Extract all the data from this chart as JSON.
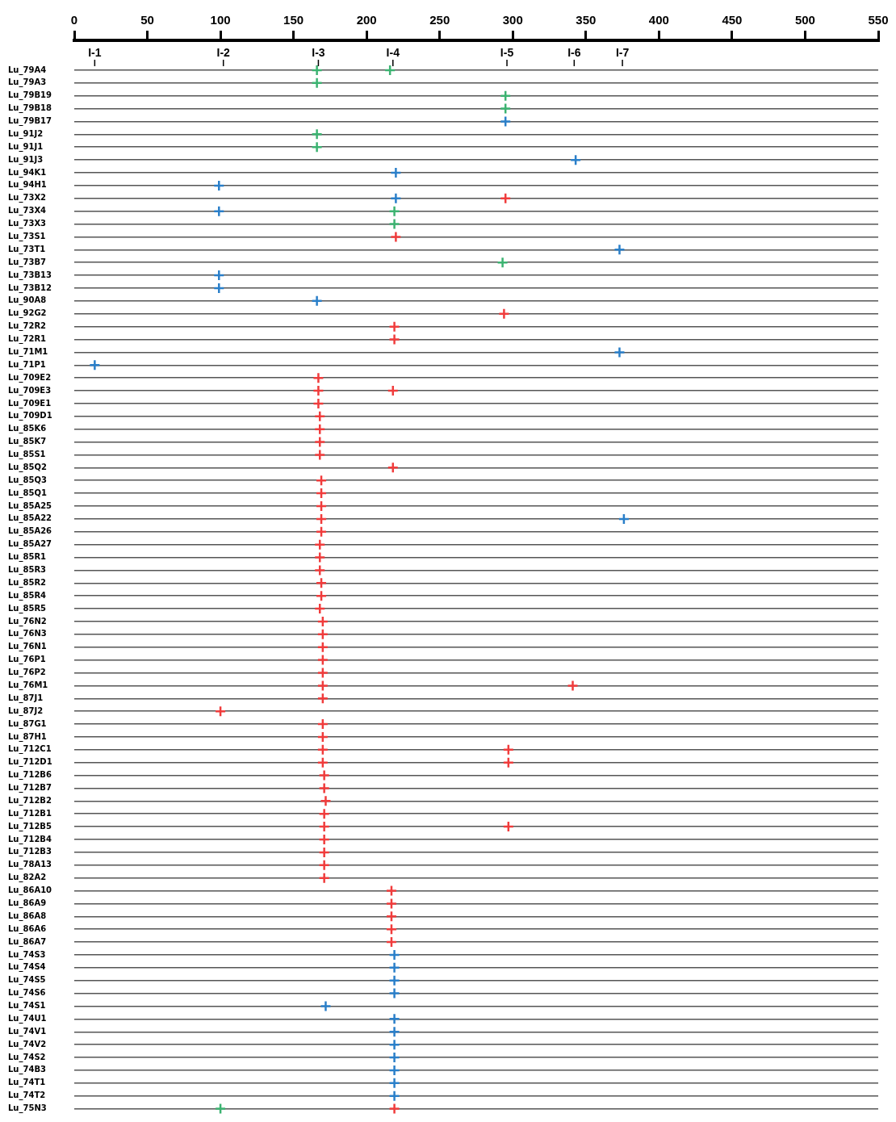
{
  "chart_data": {
    "type": "scatter",
    "orientation": "horizontal",
    "grid": "y",
    "xlim": [
      0,
      550
    ],
    "xticks": [
      0,
      50,
      100,
      150,
      200,
      250,
      300,
      350,
      400,
      450,
      500,
      550
    ],
    "ref_lines": [
      {
        "axis": "x",
        "value": 14,
        "label": "I-1"
      },
      {
        "axis": "x",
        "value": 102,
        "label": "I-2"
      },
      {
        "axis": "x",
        "value": 167,
        "label": "I-3"
      },
      {
        "axis": "x",
        "value": 218,
        "label": "I-4"
      },
      {
        "axis": "x",
        "value": 296,
        "label": "I-5"
      },
      {
        "axis": "x",
        "value": 342,
        "label": "I-6"
      },
      {
        "axis": "x",
        "value": 375,
        "label": "I-7"
      }
    ],
    "categories": [
      "Lu_79A4",
      "Lu_79A3",
      "Lu_79B19",
      "Lu_79B18",
      "Lu_79B17",
      "Lu_91J2",
      "Lu_91J1",
      "Lu_91J3",
      "Lu_94K1",
      "Lu_94H1",
      "Lu_73X2",
      "Lu_73X4",
      "Lu_73X3",
      "Lu_73S1",
      "Lu_73T1",
      "Lu_73B7",
      "Lu_73B13",
      "Lu_73B12",
      "Lu_90A8",
      "Lu_92G2",
      "Lu_72R2",
      "Lu_72R1",
      "Lu_71M1",
      "Lu_71P1",
      "Lu_709E2",
      "Lu_709E3",
      "Lu_709E1",
      "Lu_709D1",
      "Lu_85K6",
      "Lu_85K7",
      "Lu_85S1",
      "Lu_85Q2",
      "Lu_85Q3",
      "Lu_85Q1",
      "Lu_85A25",
      "Lu_85A22",
      "Lu_85A26",
      "Lu_85A27",
      "Lu_85R1",
      "Lu_85R3",
      "Lu_85R2",
      "Lu_85R4",
      "Lu_85R5",
      "Lu_76N2",
      "Lu_76N3",
      "Lu_76N1",
      "Lu_76P1",
      "Lu_76P2",
      "Lu_76M1",
      "Lu_87J1",
      "Lu_87J2",
      "Lu_87G1",
      "Lu_87H1",
      "Lu_712C1",
      "Lu_712D1",
      "Lu_712B6",
      "Lu_712B7",
      "Lu_712B2",
      "Lu_712B1",
      "Lu_712B5",
      "Lu_712B4",
      "Lu_712B3",
      "Lu_78A13",
      "Lu_82A2",
      "Lu_86A10",
      "Lu_86A9",
      "Lu_86A8",
      "Lu_86A6",
      "Lu_86A7",
      "Lu_74S3",
      "Lu_74S4",
      "Lu_74S5",
      "Lu_74S6",
      "Lu_74S1",
      "Lu_74U1",
      "Lu_74V1",
      "Lu_74V2",
      "Lu_74S2",
      "Lu_74B3",
      "Lu_74T1",
      "Lu_74T2",
      "Lu_75N3"
    ],
    "series": [
      {
        "color": "#2a7fc9",
        "values": [
          null,
          null,
          null,
          null,
          295,
          null,
          null,
          343,
          220,
          99,
          220,
          99,
          null,
          null,
          373,
          null,
          99,
          99,
          166,
          null,
          null,
          null,
          373,
          14,
          null,
          null,
          null,
          null,
          null,
          null,
          null,
          null,
          null,
          null,
          null,
          376,
          null,
          null,
          null,
          null,
          null,
          null,
          null,
          null,
          null,
          null,
          null,
          null,
          null,
          null,
          null,
          null,
          null,
          null,
          null,
          null,
          null,
          null,
          null,
          null,
          null,
          null,
          null,
          null,
          null,
          null,
          null,
          null,
          null,
          219,
          219,
          219,
          219,
          172,
          219,
          219,
          219,
          219,
          219,
          219,
          219,
          null
        ]
      },
      {
        "color": "#3cb371",
        "values": [
          166,
          166,
          295,
          295,
          null,
          166,
          166,
          null,
          null,
          null,
          null,
          219,
          219,
          null,
          null,
          293,
          null,
          null,
          null,
          null,
          null,
          null,
          null,
          null,
          null,
          null,
          null,
          null,
          null,
          null,
          null,
          null,
          null,
          null,
          null,
          null,
          null,
          null,
          null,
          null,
          null,
          null,
          null,
          null,
          null,
          null,
          null,
          null,
          null,
          null,
          null,
          null,
          null,
          null,
          null,
          null,
          null,
          null,
          null,
          null,
          null,
          null,
          null,
          null,
          null,
          null,
          null,
          null,
          null,
          null,
          null,
          null,
          null,
          null,
          null,
          null,
          null,
          null,
          null,
          null,
          null,
          100
        ]
      },
      {
        "color": "#3cb371",
        "values": [
          216,
          null,
          null,
          null,
          null,
          null,
          null,
          null,
          null,
          null,
          null,
          null,
          null,
          null,
          null,
          null,
          null,
          null,
          null,
          null,
          null,
          null,
          null,
          null,
          null,
          null,
          null,
          null,
          null,
          null,
          null,
          null,
          null,
          null,
          null,
          null,
          null,
          null,
          null,
          null,
          null,
          null,
          null,
          null,
          null,
          null,
          null,
          null,
          null,
          null,
          null,
          null,
          null,
          null,
          null,
          null,
          null,
          null,
          null,
          null,
          null,
          null,
          null,
          null,
          null,
          null,
          null,
          null,
          null,
          null,
          null,
          null,
          null,
          null,
          null,
          null,
          null,
          null,
          null,
          null,
          null,
          null
        ]
      },
      {
        "color": "#f03c3c",
        "values": [
          null,
          null,
          null,
          null,
          null,
          null,
          null,
          null,
          null,
          null,
          295,
          null,
          null,
          220,
          null,
          null,
          null,
          null,
          null,
          294,
          219,
          219,
          null,
          null,
          167,
          167,
          167,
          168,
          168,
          168,
          168,
          218,
          169,
          169,
          169,
          169,
          169,
          168,
          168,
          168,
          169,
          169,
          168,
          170,
          170,
          170,
          170,
          170,
          170,
          170,
          100,
          170,
          170,
          170,
          170,
          171,
          171,
          172,
          171,
          171,
          171,
          171,
          171,
          171,
          217,
          217,
          217,
          217,
          217,
          null,
          null,
          null,
          null,
          null,
          null,
          null,
          null,
          null,
          null,
          null,
          null,
          219
        ]
      },
      {
        "color": "#f03c3c",
        "values": [
          null,
          null,
          null,
          null,
          null,
          null,
          null,
          null,
          null,
          null,
          null,
          null,
          null,
          null,
          null,
          null,
          null,
          null,
          null,
          null,
          null,
          null,
          null,
          null,
          null,
          218,
          null,
          null,
          null,
          null,
          null,
          null,
          null,
          null,
          null,
          null,
          null,
          null,
          null,
          null,
          null,
          null,
          null,
          null,
          null,
          null,
          null,
          null,
          341,
          null,
          null,
          null,
          null,
          297,
          297,
          null,
          null,
          null,
          null,
          297,
          null,
          null,
          null,
          null,
          null,
          null,
          null,
          null,
          null,
          null,
          null,
          null,
          null,
          null,
          null,
          null,
          null,
          null,
          null,
          null,
          null,
          null
        ]
      }
    ]
  }
}
